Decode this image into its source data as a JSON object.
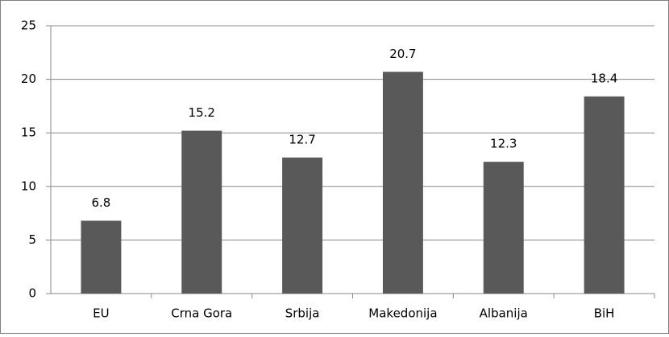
{
  "chart_data": {
    "type": "bar",
    "categories": [
      "EU",
      "Crna Gora",
      "Srbija",
      "Makedonija",
      "Albanija",
      "BiH"
    ],
    "values": [
      6.8,
      15.2,
      12.7,
      20.7,
      12.3,
      18.4
    ],
    "color": "#595959",
    "ylim": [
      0,
      25
    ],
    "yticks": [
      0,
      5,
      10,
      15,
      20,
      25
    ],
    "grid": true
  }
}
